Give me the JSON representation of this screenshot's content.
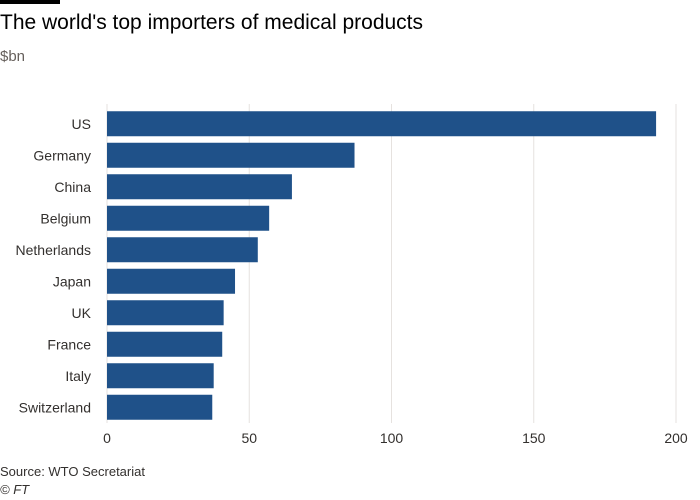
{
  "chart_data": {
    "type": "bar",
    "orientation": "horizontal",
    "title": "The world's top importers of medical products",
    "subtitle": "$bn",
    "categories": [
      "US",
      "Germany",
      "China",
      "Belgium",
      "Netherlands",
      "Japan",
      "UK",
      "France",
      "Italy",
      "Switzerland"
    ],
    "values": [
      193,
      87,
      65,
      57,
      53,
      45,
      41,
      40.5,
      37.5,
      37
    ],
    "xlim": [
      0,
      200
    ],
    "xticks": [
      0,
      50,
      100,
      150,
      200
    ],
    "grid": true,
    "bar_color": "#1f5189",
    "source": "Source: WTO Secretariat",
    "credit": "© FT"
  }
}
